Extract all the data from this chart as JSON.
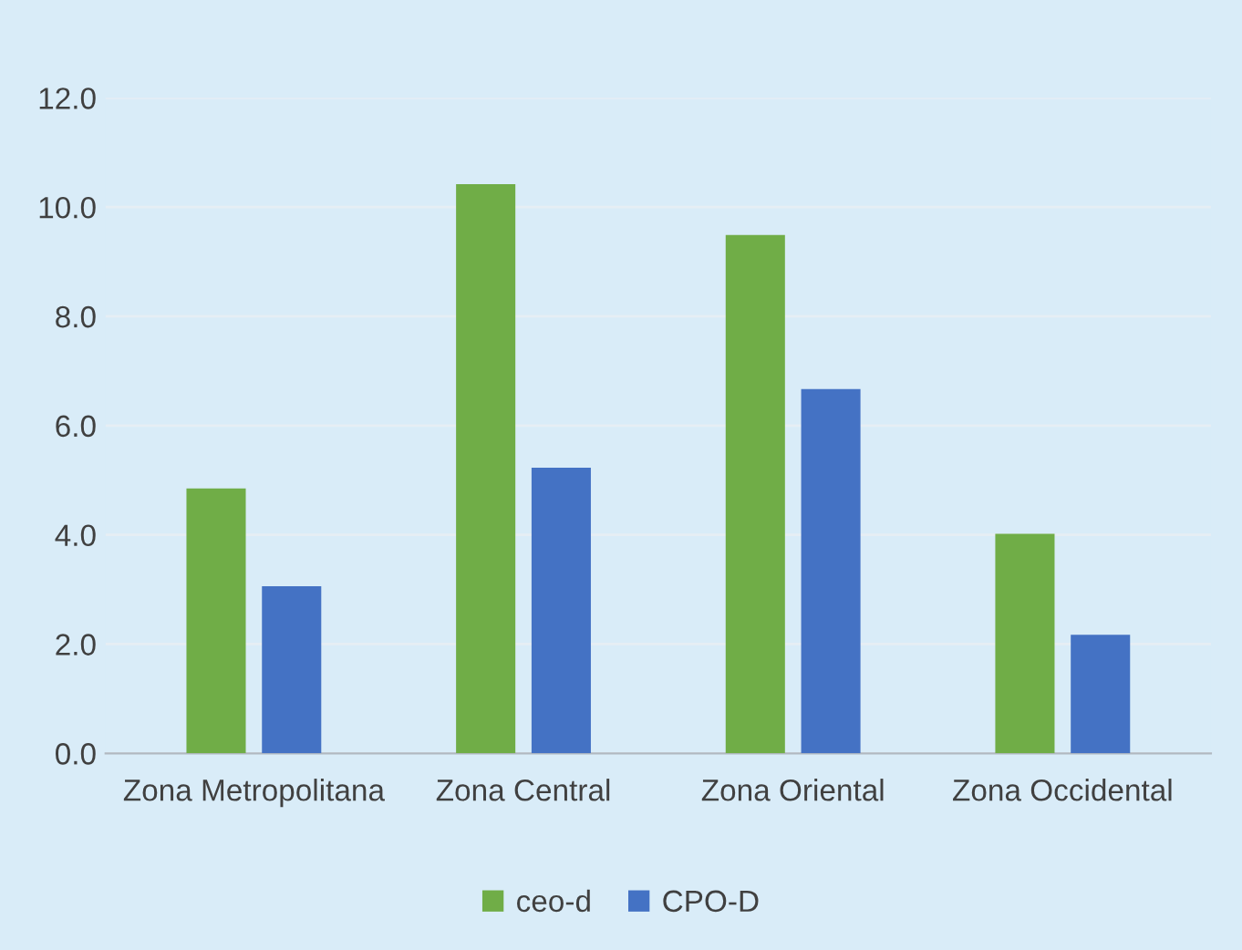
{
  "chart_data": {
    "type": "bar",
    "categories": [
      "Zona Metropolitana",
      "Zona Central",
      "Zona Oriental",
      "Zona Occidental"
    ],
    "series": [
      {
        "name": "ceo-d",
        "color": "#70ad47",
        "values": [
          4.85,
          10.42,
          9.49,
          4.02
        ]
      },
      {
        "name": "CPO-D",
        "color": "#4472c4",
        "values": [
          3.06,
          5.23,
          6.67,
          2.17
        ]
      }
    ],
    "ylim": [
      0,
      12
    ],
    "yticks": [
      {
        "value": 0,
        "label": "0.0"
      },
      {
        "value": 2,
        "label": "2.0"
      },
      {
        "value": 4,
        "label": "4.0"
      },
      {
        "value": 6,
        "label": "6.0"
      },
      {
        "value": 8,
        "label": "8.0"
      },
      {
        "value": 10,
        "label": "10.0"
      },
      {
        "value": 12,
        "label": "12.0"
      }
    ],
    "grid": "y",
    "legend": "bottom"
  }
}
